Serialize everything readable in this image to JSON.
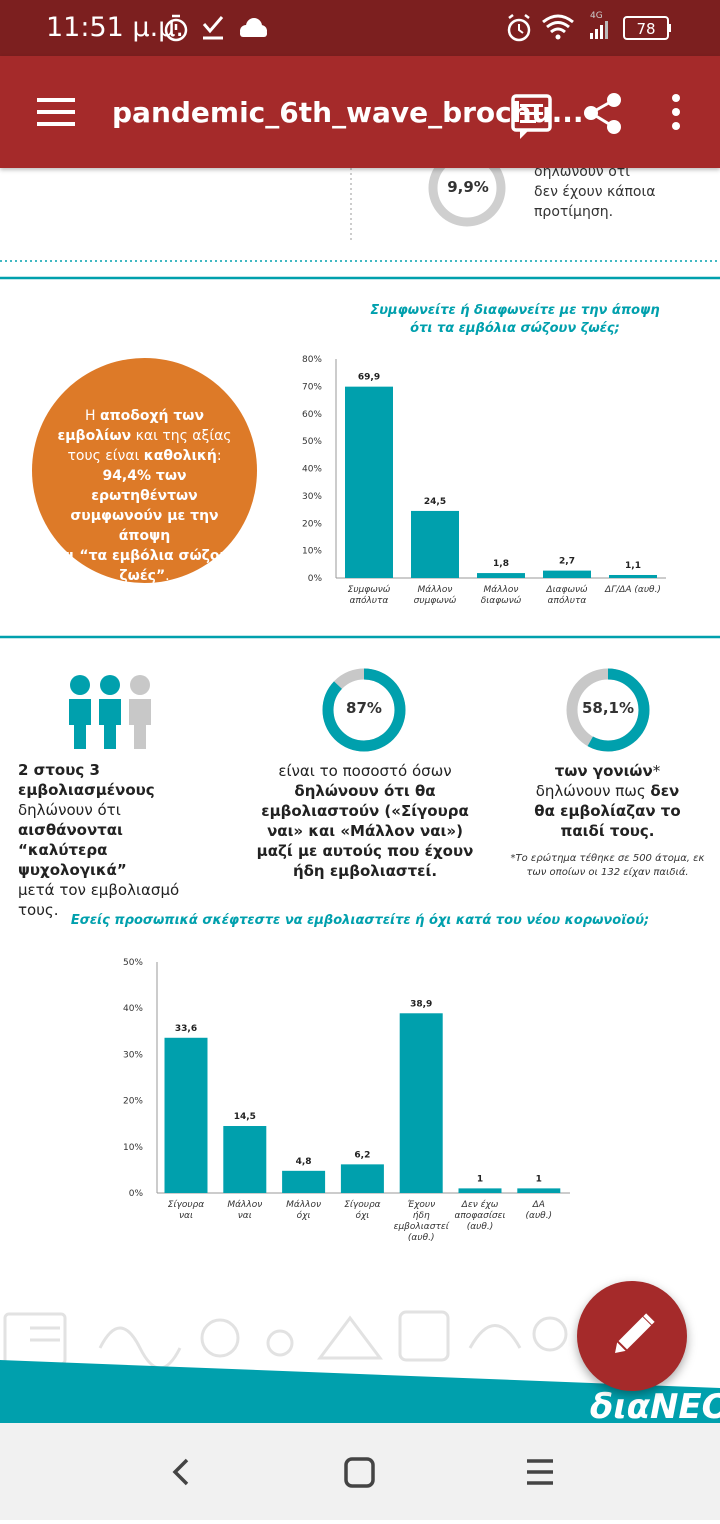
{
  "status_bar": {
    "time": "11:51 μ.μ.",
    "network": "4G",
    "battery": "78"
  },
  "app_bar": {
    "title": "pandemic_6th_wave_brochu..."
  },
  "top_partial": {
    "donut_value": "9,9%",
    "text_line1": "δηλώνουν ότι",
    "text_line2": "δεν έχουν κάποια",
    "text_line3": "προτίμηση."
  },
  "highlight_circle": {
    "line1": "Η ",
    "line1_bold": "αποδοχή των",
    "line2_bold": "εμβολίων",
    "line2": " και της αξίας",
    "line3": "τους είναι ",
    "line3_bold": "καθολική",
    "line3_end": ":",
    "line4_bold": "94,4% των ερωτηθέντων",
    "line5_bold": "συμφωνούν με την άποψη",
    "line6_bold": "ότι “τα εμβόλια σώζουν",
    "line7_bold": "ζωές”",
    "line7_end": "."
  },
  "stats": {
    "people": {
      "line1_bold": "2 στους 3 εμβολιασμένους",
      "line2": "δηλώνουν ότι ",
      "line2_bold": "αισθάνονται",
      "line3_bold": "“καλύτερα ψυχολογικά”",
      "line4": "μετά τον εμβολιασμό τους."
    },
    "donut87": {
      "value": "87%",
      "line1": "είναι το ποσοστό όσων",
      "line2_bold": "δηλώνουν ότι θα",
      "line3_bold": "εμβολιαστούν («Σίγουρα",
      "line4_bold": "ναι» και «Μάλλον ναι»)",
      "line5_bold": "μαζί με αυτούς που έχουν",
      "line6_bold": "ήδη εμβολιαστεί."
    },
    "donut58": {
      "value": "58,1%",
      "line1_bold": "των γονιών",
      "line1_end": "*",
      "line2": "δηλώνουν πως ",
      "line2_bold": "δεν",
      "line3_bold": "θα εμβολίαζαν το",
      "line4_bold": "παιδί τους.",
      "footnote1": "*Το ερώτημα τέθηκε σε 500 άτομα, εκ",
      "footnote2": "των οποίων οι 132 είχαν παιδιά."
    }
  },
  "chart_data": [
    {
      "type": "bar",
      "title": "Συμφωνείτε ή διαφωνείτε με την άποψη ότι τα εμβόλια σώζουν ζωές;",
      "title_line1": "Συμφωνείτε ή διαφωνείτε με την άποψη",
      "title_line2": "ότι τα εμβόλια σώζουν ζωές;",
      "categories": [
        [
          "Συμφωνώ",
          "απόλυτα"
        ],
        [
          "Μάλλον",
          "συμφωνώ"
        ],
        [
          "Μάλλον",
          "διαφωνώ"
        ],
        [
          "Διαφωνώ",
          "απόλυτα"
        ],
        [
          "ΔΓ/ΔΑ (αυθ.)"
        ]
      ],
      "values": [
        69.9,
        24.5,
        1.8,
        2.7,
        1.1
      ],
      "value_labels": [
        "69,9",
        "24,5",
        "1,8",
        "2,7",
        "1,1"
      ],
      "ylim": [
        0,
        80
      ],
      "yticks": [
        "0%",
        "10%",
        "20%",
        "30%",
        "40%",
        "50%",
        "60%",
        "70%",
        "80%"
      ],
      "color": "#00a0ad"
    },
    {
      "type": "bar",
      "title": "Εσείς προσωπικά σκέφτεστε να εμβολιαστείτε ή όχι κατά του νέου κορωνοϊού;",
      "categories": [
        [
          "Σίγουρα",
          "ναι"
        ],
        [
          "Μάλλον",
          "ναι"
        ],
        [
          "Μάλλον",
          "όχι"
        ],
        [
          "Σίγουρα",
          "όχι"
        ],
        [
          "Έχουν",
          "ήδη",
          "εμβολιαστεί",
          "(αυθ.)"
        ],
        [
          "Δεν έχω",
          "αποφασίσει",
          "(αυθ.)"
        ],
        [
          "ΔΑ",
          "(αυθ.)"
        ]
      ],
      "values": [
        33.6,
        14.5,
        4.8,
        6.2,
        38.9,
        1,
        1
      ],
      "value_labels": [
        "33,6",
        "14,5",
        "4,8",
        "6,2",
        "38,9",
        "1",
        "1"
      ],
      "ylim": [
        0,
        50
      ],
      "yticks": [
        "0%",
        "10%",
        "20%",
        "30%",
        "40%",
        "50%"
      ],
      "color": "#00a0ad"
    }
  ],
  "footer": {
    "brand": "διαΝΕΟσ"
  },
  "colors": {
    "status_bar": "#7c1f1f",
    "app_bar": "#a52a2a",
    "teal": "#00a0ad",
    "orange": "#dd7a28",
    "grey": "#c8c8c8"
  }
}
